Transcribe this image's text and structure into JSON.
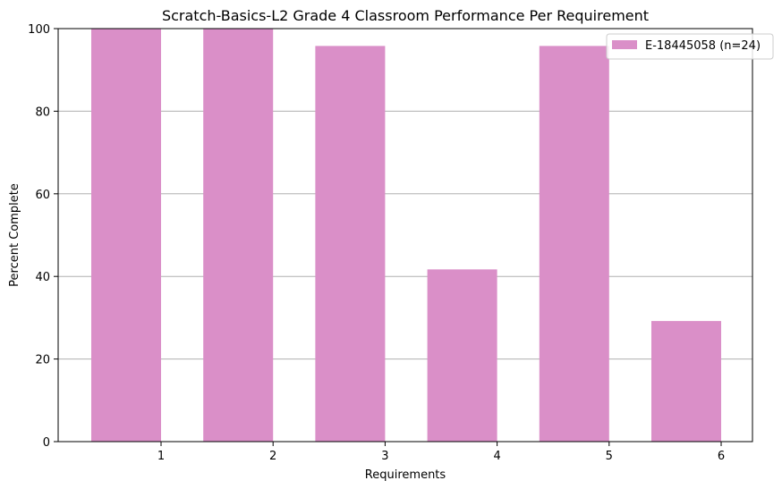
{
  "chart_data": {
    "type": "bar",
    "title": "Scratch-Basics-L2 Grade 4 Classroom Performance Per Requirement",
    "xlabel": "Requirements",
    "ylabel": "Percent Complete",
    "categories": [
      "1",
      "2",
      "3",
      "4",
      "5",
      "6"
    ],
    "series": [
      {
        "name": "E-18445058 (n=24)",
        "values": [
          100,
          100,
          95.8,
          41.7,
          95.8,
          29.2
        ],
        "color": "#da8fc8"
      }
    ],
    "ylim": [
      0,
      100
    ],
    "yticks": [
      0,
      20,
      40,
      60,
      80,
      100
    ],
    "grid": "horizontal",
    "legend_position": "top-right"
  }
}
